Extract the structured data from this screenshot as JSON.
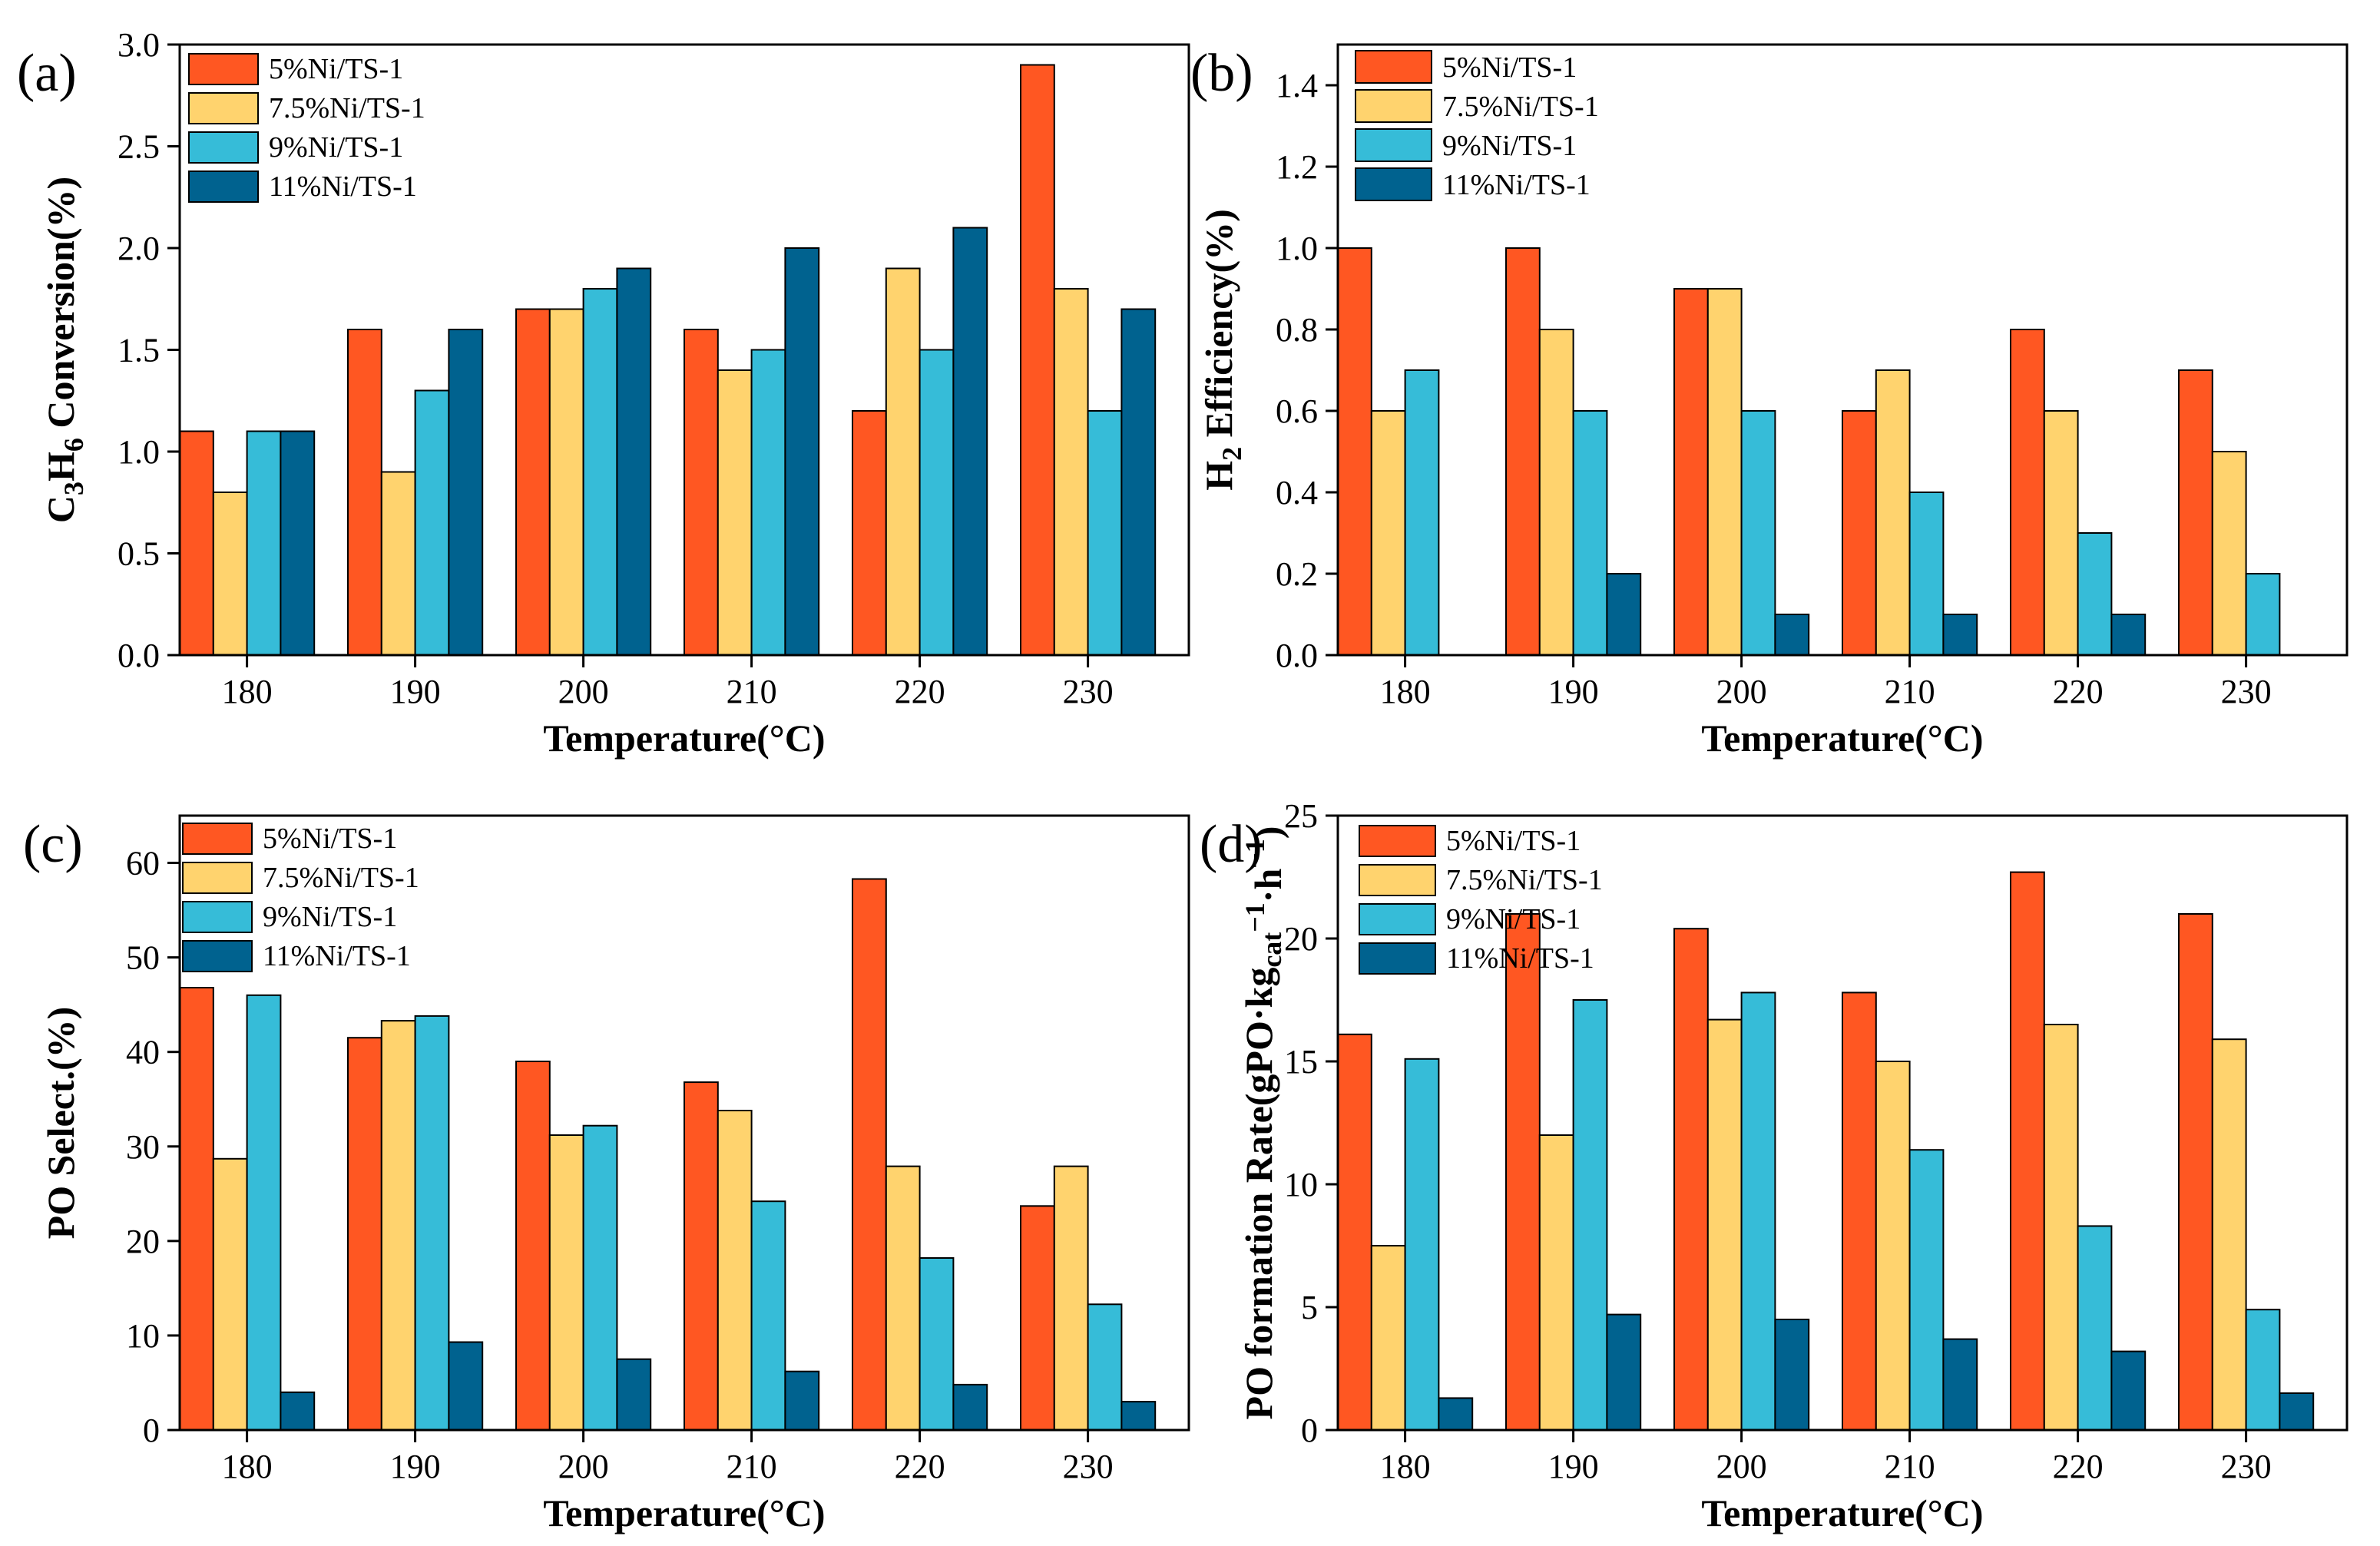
{
  "colors": [
    "#FF5722",
    "#FFD36E",
    "#36BCD8",
    "#00628F"
  ],
  "series_names": [
    "5%Ni/TS-1",
    "7.5%Ni/TS-1",
    "9%Ni/TS-1",
    "11%Ni/TS-1"
  ],
  "chart_data": [
    {
      "type": "bar",
      "panel_label": "(a)",
      "categories": [
        "180",
        "190",
        "200",
        "210",
        "220",
        "230"
      ],
      "xlabel": "Temperature(°C)",
      "ylabel": "C3H6 Conversion(%)",
      "ylim": [
        0,
        3.0
      ],
      "yticks": [
        0.0,
        0.5,
        1.0,
        1.5,
        2.0,
        2.5,
        3.0
      ],
      "ytick_labels": [
        "0.0",
        "0.5",
        "1.0",
        "1.5",
        "2.0",
        "2.5",
        "3.0"
      ],
      "legend_position": "top-left",
      "series": [
        {
          "name": "5%Ni/TS-1",
          "values": [
            1.1,
            1.6,
            1.7,
            1.6,
            1.2,
            2.9
          ]
        },
        {
          "name": "7.5%Ni/TS-1",
          "values": [
            0.8,
            0.9,
            1.7,
            1.4,
            1.9,
            1.8
          ]
        },
        {
          "name": "9%Ni/TS-1",
          "values": [
            1.1,
            1.3,
            1.8,
            1.5,
            1.5,
            1.2
          ]
        },
        {
          "name": "11%Ni/TS-1",
          "values": [
            1.1,
            1.6,
            1.9,
            2.0,
            2.1,
            1.7
          ]
        }
      ]
    },
    {
      "type": "bar",
      "panel_label": "(b)",
      "categories": [
        "180",
        "190",
        "200",
        "210",
        "220",
        "230"
      ],
      "xlabel": "Temperature(°C)",
      "ylabel": "H2 Efficiency(%)",
      "ylim": [
        0,
        1.5
      ],
      "yticks": [
        0.0,
        0.2,
        0.4,
        0.6,
        0.8,
        1.0,
        1.2,
        1.4
      ],
      "ytick_labels": [
        "0.0",
        "0.2",
        "0.4",
        "0.6",
        "0.8",
        "1.0",
        "1.2",
        "1.4"
      ],
      "legend_position": "top-left",
      "series": [
        {
          "name": "5%Ni/TS-1",
          "values": [
            1.0,
            1.0,
            0.9,
            0.6,
            0.8,
            0.7
          ]
        },
        {
          "name": "7.5%Ni/TS-1",
          "values": [
            0.6,
            0.8,
            0.9,
            0.7,
            0.6,
            0.5
          ]
        },
        {
          "name": "9%Ni/TS-1",
          "values": [
            0.7,
            0.6,
            0.6,
            0.4,
            0.3,
            0.2
          ]
        },
        {
          "name": "11%Ni/TS-1",
          "values": [
            0.0,
            0.2,
            0.1,
            0.1,
            0.1,
            0.0
          ]
        }
      ]
    },
    {
      "type": "bar",
      "panel_label": "(c)",
      "categories": [
        "180",
        "190",
        "200",
        "210",
        "220",
        "230"
      ],
      "xlabel": "Temperature(°C)",
      "ylabel": "PO Select.(%)",
      "ylim": [
        0,
        65
      ],
      "yticks": [
        0,
        10,
        20,
        30,
        40,
        50,
        60
      ],
      "ytick_labels": [
        "0",
        "10",
        "20",
        "30",
        "40",
        "50",
        "60"
      ],
      "legend_position": "top-left",
      "series": [
        {
          "name": "5%Ni/TS-1",
          "values": [
            46.8,
            41.5,
            39.0,
            36.8,
            58.3,
            23.7
          ]
        },
        {
          "name": "7.5%Ni/TS-1",
          "values": [
            28.7,
            43.3,
            31.2,
            33.8,
            27.9,
            27.9
          ]
        },
        {
          "name": "9%Ni/TS-1",
          "values": [
            46.0,
            43.8,
            32.2,
            24.2,
            18.2,
            13.3
          ]
        },
        {
          "name": "11%Ni/TS-1",
          "values": [
            4.0,
            9.3,
            7.5,
            6.2,
            4.8,
            3.0
          ]
        }
      ]
    },
    {
      "type": "bar",
      "panel_label": "(d)",
      "categories": [
        "180",
        "190",
        "200",
        "210",
        "220",
        "230"
      ],
      "xlabel": "Temperature(°C)",
      "ylabel": "PO formation Rate(gPO·kgcat−1·h−1)",
      "ylim": [
        0,
        25
      ],
      "yticks": [
        0,
        5,
        10,
        15,
        20,
        25
      ],
      "ytick_labels": [
        "0",
        "5",
        "10",
        "15",
        "20",
        "25"
      ],
      "legend_position": "top-left",
      "series": [
        {
          "name": "5%Ni/TS-1",
          "values": [
            16.1,
            21.0,
            20.4,
            17.8,
            22.7,
            21.0
          ]
        },
        {
          "name": "7.5%Ni/TS-1",
          "values": [
            7.5,
            12.0,
            16.7,
            15.0,
            16.5,
            15.9
          ]
        },
        {
          "name": "9%Ni/TS-1",
          "values": [
            15.1,
            17.5,
            17.8,
            11.4,
            8.3,
            4.9
          ]
        },
        {
          "name": "11%Ni/TS-1",
          "values": [
            1.3,
            4.7,
            4.5,
            3.7,
            3.2,
            1.5
          ]
        }
      ]
    }
  ]
}
